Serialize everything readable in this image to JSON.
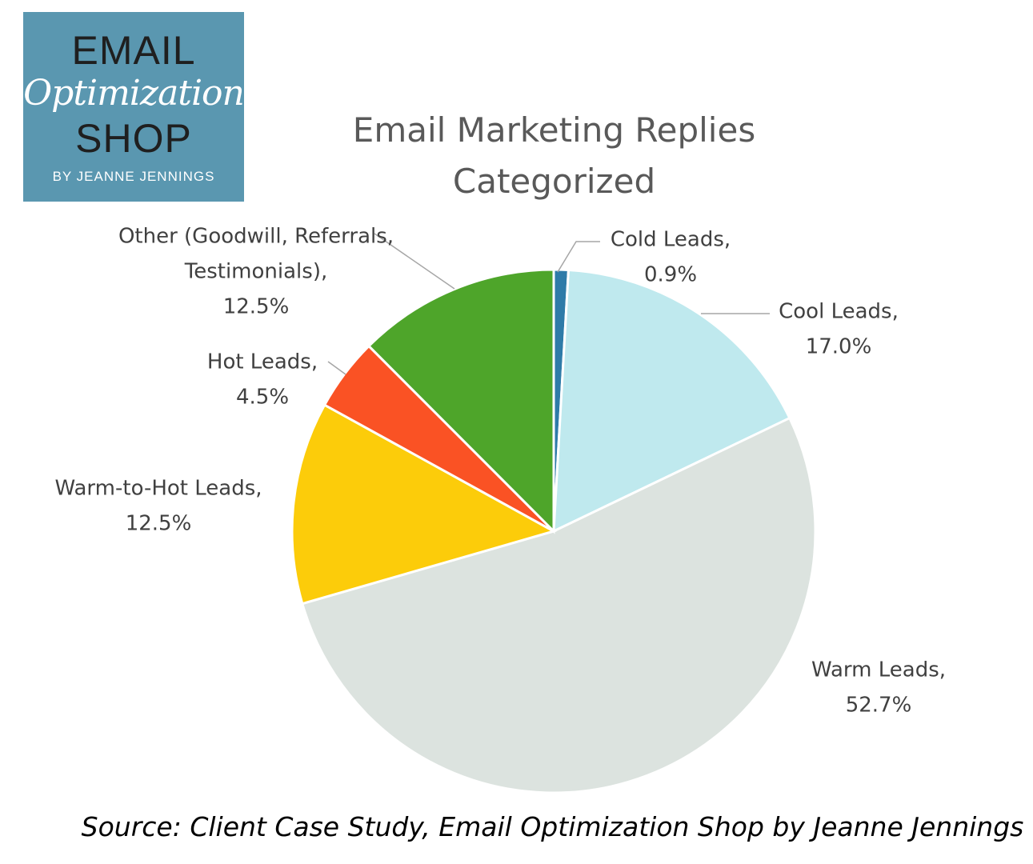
{
  "logo": {
    "line1": "EMAIL",
    "line2": "Optimization",
    "line3": "SHOP",
    "line4": "BY JEANNE JENNINGS"
  },
  "source": "Source: Client Case Study, Email Optimization Shop by Jeanne Jennings",
  "colors": {
    "cold": "#2e7ba8",
    "cool": "#bfe9ee",
    "warm": "#dce3df",
    "warm_to_hot": "#fccc0a",
    "hot": "#fa5224",
    "other": "#4ea52a"
  },
  "chart_data": {
    "type": "pie",
    "title_lines": [
      "Email Marketing Replies",
      "Categorized"
    ],
    "start": "12 o'clock",
    "direction": "clockwise",
    "legend": "none",
    "slices": [
      {
        "key": "cold",
        "label_lines": [
          "Cold Leads,",
          "0.9%"
        ],
        "category": "Cold Leads",
        "value": 0.9
      },
      {
        "key": "cool",
        "label_lines": [
          "Cool Leads,",
          "17.0%"
        ],
        "category": "Cool Leads",
        "value": 17.0
      },
      {
        "key": "warm",
        "label_lines": [
          "Warm Leads,",
          "52.7%"
        ],
        "category": "Warm Leads",
        "value": 52.7
      },
      {
        "key": "warm_to_hot",
        "label_lines": [
          "Warm-to-Hot Leads,",
          "12.5%"
        ],
        "category": "Warm-to-Hot Leads",
        "value": 12.5
      },
      {
        "key": "hot",
        "label_lines": [
          "Hot Leads,",
          "4.5%"
        ],
        "category": "Hot Leads",
        "value": 4.5
      },
      {
        "key": "other",
        "label_lines": [
          "Other (Goodwill, Referrals,",
          "Testimonials),",
          "12.5%"
        ],
        "category": "Other (Goodwill, Referrals, Testimonials)",
        "value": 12.5
      }
    ]
  }
}
